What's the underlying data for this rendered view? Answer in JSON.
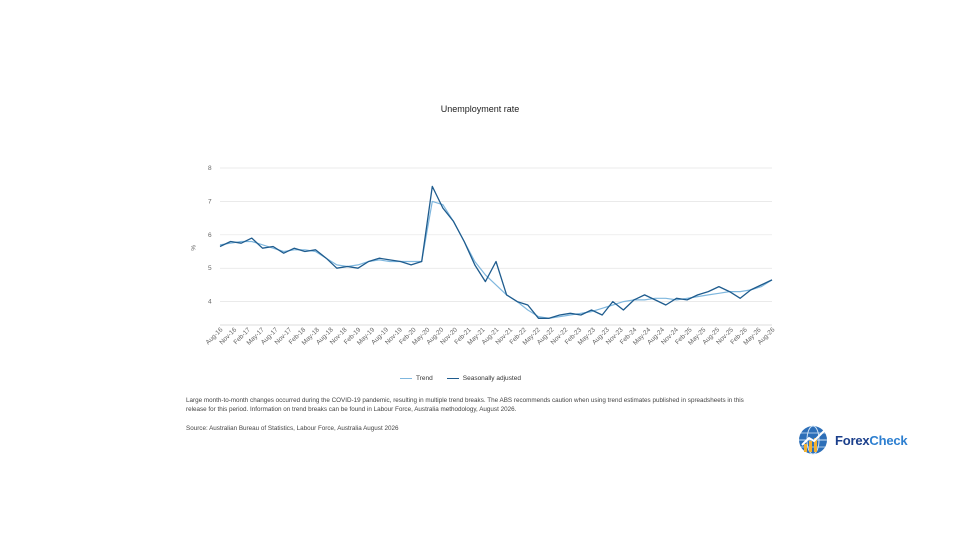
{
  "chart_data": {
    "type": "line",
    "title": "Unemployment rate",
    "ylabel": "%",
    "ylim": [
      3.3,
      8
    ],
    "yticks": [
      4,
      5,
      6,
      7,
      8
    ],
    "grid": true,
    "legend_position": "bottom",
    "x_tick_labels": [
      "Aug-16",
      "Nov-16",
      "Feb-17",
      "May-17",
      "Aug-17",
      "Nov-17",
      "Feb-18",
      "May-18",
      "Aug-18",
      "Nov-18",
      "Feb-19",
      "May-19",
      "Aug-19",
      "Nov-19",
      "Feb-20",
      "May-20",
      "Aug-20",
      "Nov-20",
      "Feb-21",
      "May-21",
      "Aug-21",
      "Nov-21",
      "Feb-22",
      "May-22",
      "Aug-22",
      "Nov-22",
      "Feb-23",
      "May-23",
      "Aug-23",
      "Nov-23",
      "Feb-24",
      "May-24",
      "Aug-24",
      "Nov-24",
      "Feb-25",
      "May-25",
      "Aug-25",
      "Nov-25",
      "Feb-26",
      "May-26",
      "Aug-26"
    ],
    "series": [
      {
        "name": "Trend",
        "color": "#7fb7de",
        "values": [
          5.7,
          5.75,
          5.8,
          5.8,
          5.7,
          5.6,
          5.5,
          5.55,
          5.55,
          5.5,
          5.3,
          5.1,
          5.05,
          5.1,
          5.2,
          5.25,
          5.2,
          5.2,
          5.2,
          5.2,
          7.0,
          6.9,
          6.4,
          5.8,
          5.2,
          4.8,
          4.5,
          4.2,
          4.0,
          3.75,
          3.55,
          3.5,
          3.55,
          3.6,
          3.65,
          3.7,
          3.8,
          3.9,
          4.0,
          4.05,
          4.05,
          4.1,
          4.1,
          4.05,
          4.1,
          4.15,
          4.2,
          4.25,
          4.3,
          4.3,
          4.35,
          4.45,
          4.65
        ]
      },
      {
        "name": "Seasonally adjusted",
        "color": "#1f5c8e",
        "values": [
          5.65,
          5.8,
          5.75,
          5.9,
          5.6,
          5.65,
          5.45,
          5.6,
          5.5,
          5.55,
          5.3,
          5.0,
          5.05,
          5.0,
          5.2,
          5.3,
          5.25,
          5.2,
          5.1,
          5.2,
          7.45,
          6.8,
          6.4,
          5.8,
          5.1,
          4.6,
          5.2,
          4.2,
          4.0,
          3.9,
          3.5,
          3.5,
          3.6,
          3.65,
          3.6,
          3.75,
          3.6,
          4.0,
          3.75,
          4.05,
          4.2,
          4.05,
          3.9,
          4.1,
          4.05,
          4.2,
          4.3,
          4.45,
          4.3,
          4.1,
          4.35,
          4.5,
          4.65
        ]
      }
    ]
  },
  "legend": {
    "trend": "Trend",
    "seasonally_adjusted": "Seasonally adjusted"
  },
  "note": "Large month-to-month changes occurred during the COVID-19 pandemic, resulting in multiple trend breaks. The ABS recommends caution when using trend estimates published in spreadsheets in this release for this period. Information on trend breaks can be found in Labour Force, Australia methodology, August 2026.",
  "source": "Source: Australian Bureau of Statistics, Labour Force, Australia August 2026",
  "logo": {
    "part1": "Forex",
    "part2": "Check"
  }
}
